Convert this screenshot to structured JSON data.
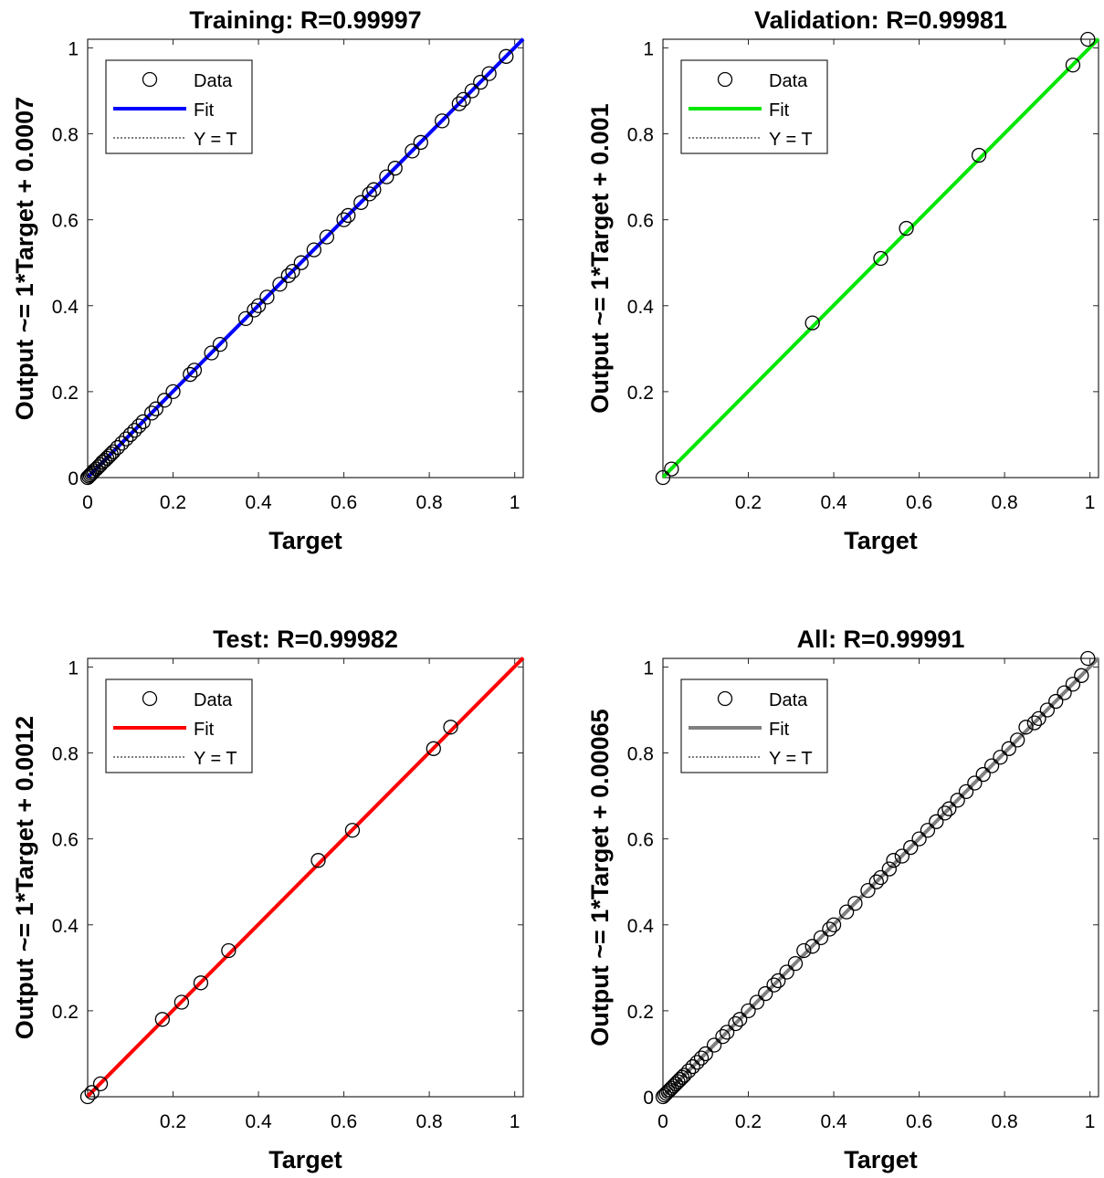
{
  "chart_data": [
    {
      "type": "scatter",
      "title": "Training: R=0.99997",
      "xlabel": "Target",
      "ylabel": "Output ~= 1*Target + 0.0007",
      "xlim": [
        0,
        1.02
      ],
      "ylim": [
        0,
        1.02
      ],
      "xticks": [
        "0",
        "0.2",
        "0.4",
        "0.6",
        "0.8",
        "1"
      ],
      "yticks": [
        "0",
        "0.2",
        "0.4",
        "0.6",
        "0.8",
        "1"
      ],
      "grid": false,
      "legend_position": "top-left",
      "legend": [
        {
          "name": "Data"
        },
        {
          "name": "Fit"
        },
        {
          "name": "Y = T"
        }
      ],
      "fit_color": "#0000ff",
      "fit": {
        "slope": 1,
        "intercept": 0.0007
      },
      "data": {
        "x": [
          0.0,
          0.003,
          0.006,
          0.009,
          0.012,
          0.015,
          0.02,
          0.025,
          0.03,
          0.035,
          0.04,
          0.045,
          0.05,
          0.055,
          0.06,
          0.07,
          0.08,
          0.09,
          0.1,
          0.11,
          0.12,
          0.13,
          0.15,
          0.16,
          0.18,
          0.2,
          0.24,
          0.25,
          0.29,
          0.31,
          0.37,
          0.39,
          0.4,
          0.42,
          0.45,
          0.47,
          0.48,
          0.5,
          0.53,
          0.56,
          0.6,
          0.61,
          0.64,
          0.66,
          0.67,
          0.7,
          0.72,
          0.76,
          0.78,
          0.83,
          0.87,
          0.88,
          0.9,
          0.92,
          0.94,
          0.98
        ],
        "y": [
          0.0,
          0.003,
          0.006,
          0.009,
          0.012,
          0.016,
          0.02,
          0.025,
          0.03,
          0.036,
          0.04,
          0.045,
          0.05,
          0.055,
          0.06,
          0.07,
          0.08,
          0.09,
          0.1,
          0.11,
          0.12,
          0.13,
          0.15,
          0.16,
          0.18,
          0.2,
          0.24,
          0.25,
          0.29,
          0.31,
          0.37,
          0.39,
          0.4,
          0.42,
          0.45,
          0.47,
          0.48,
          0.5,
          0.53,
          0.56,
          0.6,
          0.61,
          0.64,
          0.66,
          0.67,
          0.7,
          0.72,
          0.76,
          0.78,
          0.83,
          0.87,
          0.88,
          0.9,
          0.92,
          0.94,
          0.98
        ]
      }
    },
    {
      "type": "scatter",
      "title": "Validation: R=0.99981",
      "xlabel": "Target",
      "ylabel": "Output ~= 1*Target + 0.001",
      "xlim": [
        0,
        1.02
      ],
      "ylim": [
        0,
        1.02
      ],
      "xticks": [
        "0.2",
        "0.4",
        "0.6",
        "0.8",
        "1"
      ],
      "yticks": [
        "0.2",
        "0.4",
        "0.6",
        "0.8",
        "1"
      ],
      "grid": false,
      "legend_position": "top-left",
      "legend": [
        {
          "name": "Data"
        },
        {
          "name": "Fit"
        },
        {
          "name": "Y = T"
        }
      ],
      "fit_color": "#00e600",
      "fit": {
        "slope": 1,
        "intercept": 0.001
      },
      "data": {
        "x": [
          0.0,
          0.02,
          0.35,
          0.51,
          0.57,
          0.74,
          0.96,
          0.995
        ],
        "y": [
          0.0,
          0.02,
          0.36,
          0.51,
          0.58,
          0.75,
          0.96,
          1.02
        ]
      }
    },
    {
      "type": "scatter",
      "title": "Test: R=0.99982",
      "xlabel": "Target",
      "ylabel": "Output ~= 1*Target + 0.0012",
      "xlim": [
        0,
        1.02
      ],
      "ylim": [
        0,
        1.02
      ],
      "xticks": [
        "0.2",
        "0.4",
        "0.6",
        "0.8",
        "1"
      ],
      "yticks": [
        "0.2",
        "0.4",
        "0.6",
        "0.8",
        "1"
      ],
      "grid": false,
      "legend_position": "top-left",
      "legend": [
        {
          "name": "Data"
        },
        {
          "name": "Fit"
        },
        {
          "name": "Y = T"
        }
      ],
      "fit_color": "#ff0000",
      "fit": {
        "slope": 1,
        "intercept": 0.0012
      },
      "data": {
        "x": [
          0.0,
          0.01,
          0.03,
          0.175,
          0.22,
          0.265,
          0.33,
          0.54,
          0.62,
          0.81,
          0.85
        ],
        "y": [
          0.0,
          0.01,
          0.03,
          0.18,
          0.22,
          0.265,
          0.34,
          0.55,
          0.62,
          0.81,
          0.86
        ]
      }
    },
    {
      "type": "scatter",
      "title": "All: R=0.99991",
      "xlabel": "Target",
      "ylabel": "Output ~= 1*Target + 0.00065",
      "xlim": [
        0,
        1.02
      ],
      "ylim": [
        0,
        1.02
      ],
      "xticks": [
        "0",
        "0.2",
        "0.4",
        "0.6",
        "0.8",
        "1"
      ],
      "yticks": [
        "0",
        "0.2",
        "0.4",
        "0.6",
        "0.8",
        "1"
      ],
      "grid": false,
      "legend_position": "top-left",
      "legend": [
        {
          "name": "Data"
        },
        {
          "name": "Fit"
        },
        {
          "name": "Y = T"
        }
      ],
      "fit_color": "#808080",
      "fit": {
        "slope": 1,
        "intercept": 0.00065
      },
      "data": {
        "x": [
          0.0,
          0.004,
          0.008,
          0.012,
          0.016,
          0.02,
          0.025,
          0.03,
          0.035,
          0.04,
          0.045,
          0.05,
          0.06,
          0.07,
          0.08,
          0.09,
          0.1,
          0.12,
          0.14,
          0.15,
          0.17,
          0.18,
          0.2,
          0.22,
          0.24,
          0.26,
          0.27,
          0.29,
          0.31,
          0.33,
          0.35,
          0.37,
          0.39,
          0.4,
          0.43,
          0.45,
          0.48,
          0.5,
          0.51,
          0.53,
          0.54,
          0.56,
          0.58,
          0.6,
          0.62,
          0.64,
          0.66,
          0.67,
          0.69,
          0.71,
          0.73,
          0.75,
          0.77,
          0.79,
          0.81,
          0.83,
          0.85,
          0.87,
          0.88,
          0.9,
          0.92,
          0.94,
          0.96,
          0.98,
          0.995
        ],
        "y": [
          0.0,
          0.004,
          0.008,
          0.012,
          0.016,
          0.02,
          0.025,
          0.03,
          0.035,
          0.04,
          0.045,
          0.05,
          0.06,
          0.07,
          0.08,
          0.09,
          0.1,
          0.12,
          0.14,
          0.15,
          0.17,
          0.18,
          0.2,
          0.22,
          0.24,
          0.26,
          0.27,
          0.29,
          0.31,
          0.34,
          0.35,
          0.37,
          0.39,
          0.4,
          0.43,
          0.45,
          0.48,
          0.5,
          0.51,
          0.53,
          0.55,
          0.56,
          0.58,
          0.6,
          0.62,
          0.64,
          0.66,
          0.67,
          0.69,
          0.71,
          0.73,
          0.75,
          0.77,
          0.79,
          0.81,
          0.83,
          0.86,
          0.87,
          0.88,
          0.9,
          0.92,
          0.94,
          0.96,
          0.98,
          1.02
        ]
      }
    }
  ]
}
